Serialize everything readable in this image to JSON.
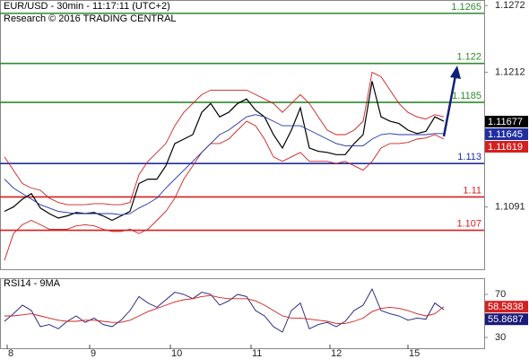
{
  "chart_data": [
    {
      "type": "line",
      "title": "EUR/USD - 30min - 11:17:11 (UTC+2)",
      "subtitle": "Research © 2016 TRADING CENTRAL",
      "x": [
        0,
        1,
        2,
        3,
        4,
        5,
        6,
        7,
        8,
        9,
        10,
        11,
        12,
        13,
        14,
        15,
        16,
        17,
        18,
        19,
        20,
        21,
        22,
        23,
        24,
        25,
        26,
        27,
        28,
        29,
        30,
        31,
        32,
        33,
        34,
        35,
        36,
        37,
        38,
        39,
        40,
        41,
        42,
        43,
        44,
        45,
        46,
        47,
        48,
        49
      ],
      "xlim": [
        -0.5,
        53.5
      ],
      "ylim": [
        1.1035,
        1.1277
      ],
      "yticks": [
        1.1091,
        1.1212,
        1.1272
      ],
      "series": [
        {
          "color": "#000000",
          "width": 1.2,
          "values": [
            1.1087,
            1.1091,
            1.1098,
            1.1103,
            1.109,
            1.1085,
            1.1081,
            1.1083,
            1.1086,
            1.1085,
            1.1086,
            1.1083,
            1.1079,
            1.1083,
            1.1087,
            1.1112,
            1.1116,
            1.1116,
            1.1128,
            1.1148,
            1.1152,
            1.1156,
            1.1176,
            1.1184,
            1.1172,
            1.1176,
            1.1184,
            1.1188,
            1.1178,
            1.1172,
            1.1156,
            1.1144,
            1.116,
            1.118,
            1.1144,
            1.1141,
            1.114,
            1.1138,
            1.1138,
            1.1148,
            1.1156,
            1.1204,
            1.1172,
            1.1168,
            1.1166,
            1.116,
            1.1157,
            1.1159,
            1.1172,
            1.1168
          ]
        },
        {
          "color": "#cc2222",
          "width": 0.9,
          "values": [
            1.1136,
            1.1124,
            1.1112,
            1.1108,
            1.1106,
            1.1099,
            1.1095,
            1.1093,
            1.1093,
            1.1093,
            1.1094,
            1.1094,
            1.1093,
            1.1093,
            1.1095,
            1.112,
            1.1132,
            1.114,
            1.1148,
            1.1164,
            1.1176,
            1.1184,
            1.1192,
            1.1196,
            1.1196,
            1.1196,
            1.1196,
            1.1196,
            1.1192,
            1.1188,
            1.1184,
            1.1176,
            1.1184,
            1.1192,
            1.1184,
            1.1172,
            1.116,
            1.1156,
            1.1156,
            1.116,
            1.1168,
            1.1212,
            1.1208,
            1.1196,
            1.1184,
            1.1176,
            1.1172,
            1.117,
            1.1174,
            1.1172
          ]
        },
        {
          "color": "#cc2222",
          "width": 0.9,
          "values": [
            1.1043,
            1.1067,
            1.1075,
            1.1079,
            1.1075,
            1.1071,
            1.1071,
            1.1071,
            1.1074,
            1.1075,
            1.1074,
            1.1071,
            1.1069,
            1.1069,
            1.1071,
            1.1067,
            1.1071,
            1.1079,
            1.1087,
            1.1099,
            1.1116,
            1.1128,
            1.114,
            1.1148,
            1.1148,
            1.1152,
            1.116,
            1.1168,
            1.1164,
            1.1152,
            1.1136,
            1.1132,
            1.1136,
            1.114,
            1.1132,
            1.1132,
            1.1132,
            1.113,
            1.1132,
            1.1128,
            1.1124,
            1.1132,
            1.1144,
            1.1148,
            1.1148,
            1.1149,
            1.1152,
            1.1153,
            1.1156,
            1.1152
          ]
        },
        {
          "color": "#2233aa",
          "width": 0.9,
          "values": [
            1.1116,
            1.1108,
            1.1103,
            1.1098,
            1.1093,
            1.109,
            1.1087,
            1.1086,
            1.1085,
            1.1085,
            1.1085,
            1.1085,
            1.1085,
            1.1084,
            1.1085,
            1.109,
            1.1094,
            1.1099,
            1.1108,
            1.1116,
            1.1124,
            1.1132,
            1.114,
            1.1148,
            1.1156,
            1.116,
            1.1166,
            1.1172,
            1.1174,
            1.1172,
            1.1168,
            1.1164,
            1.1164,
            1.1164,
            1.116,
            1.1156,
            1.1152,
            1.1148,
            1.1146,
            1.1146,
            1.1146,
            1.1152,
            1.1156,
            1.1157,
            1.1156,
            1.1156,
            1.1156,
            1.1156,
            1.1157,
            1.1157
          ]
        }
      ],
      "levels": [
        {
          "value": 1.1265,
          "color": "#2e8b2e"
        },
        {
          "value": 1.122,
          "color": "#2e8b2e"
        },
        {
          "value": 1.1185,
          "color": "#2e8b2e"
        },
        {
          "value": 1.113,
          "color": "#1f2fa0"
        },
        {
          "value": 1.11,
          "color": "#d42020"
        },
        {
          "value": 1.107,
          "color": "#d42020"
        }
      ],
      "last_values": [
        {
          "value": 1.11677,
          "color": "#000000"
        },
        {
          "value": 1.11645,
          "color": "#1f2fa0"
        },
        {
          "value": 1.11619,
          "color": "#d42020"
        }
      ]
    },
    {
      "type": "line",
      "title": "RSI14 - 9MA",
      "xticks": [
        {
          "value": 0.3,
          "label": "8"
        },
        {
          "value": 9.5,
          "label": "9"
        },
        {
          "value": 18.5,
          "label": "10"
        },
        {
          "value": 27.5,
          "label": "11"
        },
        {
          "value": 36.3,
          "label": "12"
        },
        {
          "value": 45,
          "label": "15"
        }
      ],
      "ylim": [
        20,
        85
      ],
      "yticks": [
        30,
        70
      ],
      "series": [
        {
          "color": "#1a1a7a",
          "width": 0.9,
          "values": [
            45,
            52,
            60,
            55,
            40,
            42,
            38,
            45,
            50,
            44,
            48,
            42,
            40,
            46,
            55,
            68,
            62,
            58,
            65,
            72,
            70,
            66,
            72,
            70,
            60,
            64,
            70,
            68,
            55,
            50,
            40,
            35,
            55,
            62,
            38,
            42,
            44,
            40,
            45,
            55,
            60,
            75,
            55,
            52,
            50,
            46,
            48,
            47,
            62,
            55.8687
          ]
        },
        {
          "color": "#d42020",
          "width": 0.9,
          "values": [
            50,
            50,
            51,
            52,
            50,
            48,
            46,
            45,
            45,
            46,
            46,
            45,
            44,
            44,
            46,
            50,
            54,
            57,
            60,
            63,
            65,
            66,
            68,
            69,
            67,
            66,
            66,
            66,
            64,
            60,
            55,
            50,
            48,
            48,
            47,
            46,
            45,
            43,
            43,
            45,
            48,
            54,
            57,
            58,
            57,
            55,
            52,
            50,
            52,
            58.5838
          ]
        }
      ],
      "last_values": [
        {
          "value": 58.5838,
          "color": "#d42020"
        },
        {
          "value": 55.8687,
          "color": "#1a1a7a"
        }
      ]
    }
  ]
}
